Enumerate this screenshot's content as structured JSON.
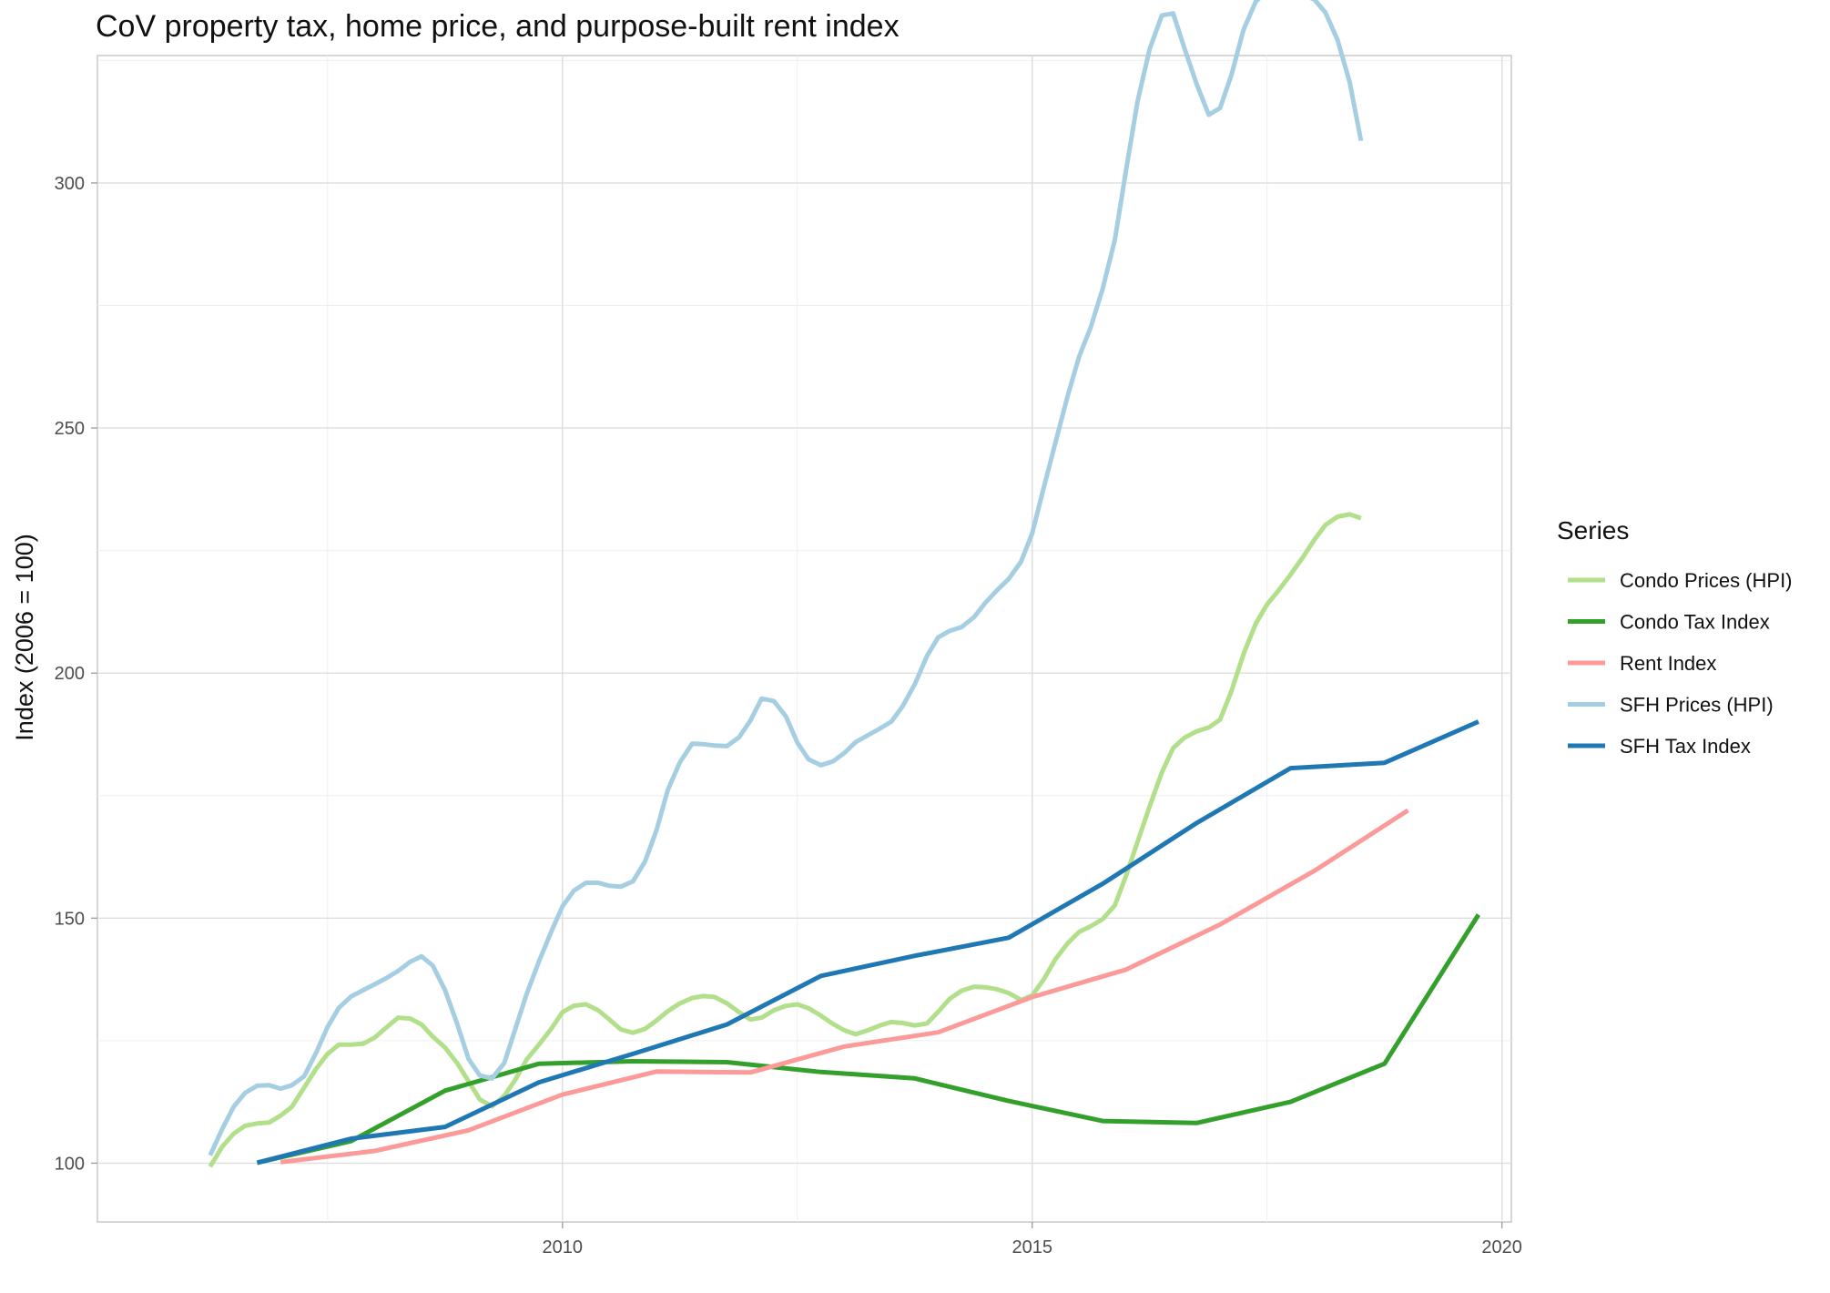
{
  "chart_data": {
    "type": "line",
    "title": "CoV property tax, home price, and purpose-built rent index",
    "xlabel": "",
    "ylabel": "Index (2006 = 100)",
    "xlim": [
      2005.05,
      2020.1
    ],
    "ylim": [
      88,
      326
    ],
    "x_ticks": [
      2010,
      2015,
      2020
    ],
    "y_ticks": [
      100,
      150,
      200,
      250,
      300
    ],
    "grid": true,
    "legend": {
      "title": "Series",
      "position": "right"
    },
    "series": [
      {
        "name": "Condo Prices (HPI)",
        "color": "#b2df8a",
        "points": [
          [
            2006.25,
            99.3
          ],
          [
            2006.38,
            103.4
          ],
          [
            2006.5,
            106
          ],
          [
            2006.62,
            107.6
          ],
          [
            2006.75,
            108.1
          ],
          [
            2006.88,
            108.3
          ],
          [
            2007.0,
            109.7
          ],
          [
            2007.12,
            111.5
          ],
          [
            2007.25,
            115.4
          ],
          [
            2007.38,
            119.3
          ],
          [
            2007.5,
            122.3
          ],
          [
            2007.62,
            124.2
          ],
          [
            2007.75,
            124.2
          ],
          [
            2007.88,
            124.4
          ],
          [
            2008.0,
            125.6
          ],
          [
            2008.12,
            127.6
          ],
          [
            2008.25,
            129.7
          ],
          [
            2008.38,
            129.5
          ],
          [
            2008.5,
            128.3
          ],
          [
            2008.62,
            125.8
          ],
          [
            2008.75,
            123.6
          ],
          [
            2008.88,
            120.4
          ],
          [
            2009.0,
            116.7
          ],
          [
            2009.12,
            113
          ],
          [
            2009.25,
            111.6
          ],
          [
            2009.38,
            113.7
          ],
          [
            2009.5,
            117.1
          ],
          [
            2009.62,
            121.2
          ],
          [
            2009.75,
            124.2
          ],
          [
            2009.88,
            127.4
          ],
          [
            2010.0,
            130.8
          ],
          [
            2010.12,
            132.1
          ],
          [
            2010.25,
            132.4
          ],
          [
            2010.38,
            131.2
          ],
          [
            2010.5,
            129.3
          ],
          [
            2010.62,
            127.3
          ],
          [
            2010.75,
            126.6
          ],
          [
            2010.88,
            127.4
          ],
          [
            2011.0,
            129.1
          ],
          [
            2011.12,
            131
          ],
          [
            2011.25,
            132.6
          ],
          [
            2011.38,
            133.7
          ],
          [
            2011.5,
            134.1
          ],
          [
            2011.62,
            133.9
          ],
          [
            2011.75,
            132.6
          ],
          [
            2011.88,
            130.8
          ],
          [
            2012.0,
            129.3
          ],
          [
            2012.12,
            129.7
          ],
          [
            2012.25,
            131.2
          ],
          [
            2012.38,
            132.1
          ],
          [
            2012.5,
            132.4
          ],
          [
            2012.62,
            131.6
          ],
          [
            2012.75,
            130.1
          ],
          [
            2012.88,
            128.4
          ],
          [
            2013.0,
            127.1
          ],
          [
            2013.12,
            126.3
          ],
          [
            2013.25,
            127.1
          ],
          [
            2013.38,
            128.1
          ],
          [
            2013.5,
            128.8
          ],
          [
            2013.62,
            128.6
          ],
          [
            2013.75,
            128.1
          ],
          [
            2013.88,
            128.5
          ],
          [
            2014.0,
            130.9
          ],
          [
            2014.12,
            133.5
          ],
          [
            2014.25,
            135.2
          ],
          [
            2014.38,
            136
          ],
          [
            2014.5,
            135.9
          ],
          [
            2014.62,
            135.5
          ],
          [
            2014.75,
            134.7
          ],
          [
            2014.88,
            133.3
          ],
          [
            2015.0,
            134.2
          ],
          [
            2015.12,
            137.4
          ],
          [
            2015.25,
            141.7
          ],
          [
            2015.38,
            144.9
          ],
          [
            2015.5,
            147.2
          ],
          [
            2015.62,
            148.3
          ],
          [
            2015.75,
            149.8
          ],
          [
            2015.88,
            152.6
          ],
          [
            2016.0,
            158.7
          ],
          [
            2016.12,
            165.5
          ],
          [
            2016.25,
            172.8
          ],
          [
            2016.38,
            179.7
          ],
          [
            2016.5,
            184.7
          ],
          [
            2016.62,
            186.8
          ],
          [
            2016.75,
            188.1
          ],
          [
            2016.88,
            188.9
          ],
          [
            2017.0,
            190.5
          ],
          [
            2017.12,
            196.3
          ],
          [
            2017.25,
            203.9
          ],
          [
            2017.38,
            210.1
          ],
          [
            2017.5,
            214
          ],
          [
            2017.62,
            216.8
          ],
          [
            2017.75,
            220.1
          ],
          [
            2017.88,
            223.6
          ],
          [
            2018.0,
            227.1
          ],
          [
            2018.12,
            230.2
          ],
          [
            2018.25,
            231.9
          ],
          [
            2018.38,
            232.4
          ],
          [
            2018.5,
            231.6
          ]
        ]
      },
      {
        "name": "Condo Tax Index",
        "color": "#33a02c",
        "points": [
          [
            2006.75,
            100.1
          ],
          [
            2007.75,
            104.5
          ],
          [
            2008.75,
            114.8
          ],
          [
            2009.75,
            120.3
          ],
          [
            2010.75,
            120.8
          ],
          [
            2011.75,
            120.6
          ],
          [
            2012.75,
            118.6
          ],
          [
            2013.75,
            117.3
          ],
          [
            2014.75,
            112.7
          ],
          [
            2015.75,
            108.6
          ],
          [
            2016.75,
            108.2
          ],
          [
            2017.75,
            112.5
          ],
          [
            2018.75,
            120.3
          ],
          [
            2019.75,
            150.7
          ]
        ]
      },
      {
        "name": "Rent Index",
        "color": "#fb9a99",
        "points": [
          [
            2007.0,
            100.2
          ],
          [
            2008.0,
            102.5
          ],
          [
            2009.0,
            106.7
          ],
          [
            2010.0,
            114
          ],
          [
            2011.0,
            118.7
          ],
          [
            2012.0,
            118.5
          ],
          [
            2013.0,
            123.8
          ],
          [
            2014.0,
            126.7
          ],
          [
            2015.0,
            133.9
          ],
          [
            2016.0,
            139.5
          ],
          [
            2017.0,
            148.7
          ],
          [
            2018.0,
            159.6
          ],
          [
            2019.0,
            172
          ]
        ]
      },
      {
        "name": "SFH Prices (HPI)",
        "color": "#a6cee3",
        "points": [
          [
            2006.25,
            101.6
          ],
          [
            2006.38,
            107
          ],
          [
            2006.5,
            111.5
          ],
          [
            2006.62,
            114.3
          ],
          [
            2006.75,
            115.8
          ],
          [
            2006.88,
            115.9
          ],
          [
            2007.0,
            115.2
          ],
          [
            2007.12,
            115.9
          ],
          [
            2007.25,
            117.7
          ],
          [
            2007.38,
            122.6
          ],
          [
            2007.5,
            127.8
          ],
          [
            2007.62,
            131.7
          ],
          [
            2007.75,
            134
          ],
          [
            2007.88,
            135.3
          ],
          [
            2008.0,
            136.5
          ],
          [
            2008.12,
            137.7
          ],
          [
            2008.25,
            139.2
          ],
          [
            2008.38,
            141.1
          ],
          [
            2008.5,
            142.2
          ],
          [
            2008.62,
            140.3
          ],
          [
            2008.75,
            135.3
          ],
          [
            2008.88,
            128.4
          ],
          [
            2009.0,
            121.3
          ],
          [
            2009.12,
            117.9
          ],
          [
            2009.25,
            117.3
          ],
          [
            2009.38,
            120.4
          ],
          [
            2009.5,
            127.5
          ],
          [
            2009.62,
            134.6
          ],
          [
            2009.75,
            141.2
          ],
          [
            2009.88,
            147.2
          ],
          [
            2010.0,
            152.4
          ],
          [
            2010.12,
            155.6
          ],
          [
            2010.25,
            157.2
          ],
          [
            2010.38,
            157.2
          ],
          [
            2010.5,
            156.6
          ],
          [
            2010.62,
            156.4
          ],
          [
            2010.75,
            157.5
          ],
          [
            2010.88,
            161.6
          ],
          [
            2011.0,
            167.9
          ],
          [
            2011.12,
            176.1
          ],
          [
            2011.25,
            181.8
          ],
          [
            2011.38,
            185.6
          ],
          [
            2011.5,
            185.5
          ],
          [
            2011.62,
            185.2
          ],
          [
            2011.75,
            185.1
          ],
          [
            2011.88,
            186.9
          ],
          [
            2012.0,
            190.3
          ],
          [
            2012.12,
            194.8
          ],
          [
            2012.25,
            194.3
          ],
          [
            2012.38,
            191.1
          ],
          [
            2012.5,
            185.8
          ],
          [
            2012.62,
            182.4
          ],
          [
            2012.75,
            181.2
          ],
          [
            2012.88,
            182
          ],
          [
            2013.0,
            183.7
          ],
          [
            2013.12,
            185.9
          ],
          [
            2013.25,
            187.3
          ],
          [
            2013.38,
            188.7
          ],
          [
            2013.5,
            190.1
          ],
          [
            2013.62,
            193.2
          ],
          [
            2013.75,
            197.7
          ],
          [
            2013.88,
            203.5
          ],
          [
            2014.0,
            207.3
          ],
          [
            2014.12,
            208.6
          ],
          [
            2014.25,
            209.4
          ],
          [
            2014.38,
            211.4
          ],
          [
            2014.5,
            214.3
          ],
          [
            2014.62,
            216.8
          ],
          [
            2014.75,
            219.2
          ],
          [
            2014.88,
            222.7
          ],
          [
            2015.0,
            228.5
          ],
          [
            2015.12,
            237.6
          ],
          [
            2015.25,
            247.2
          ],
          [
            2015.38,
            256.7
          ],
          [
            2015.5,
            264.6
          ],
          [
            2015.62,
            270.4
          ],
          [
            2015.75,
            278.4
          ],
          [
            2015.88,
            288.4
          ],
          [
            2016.0,
            302.7
          ],
          [
            2016.12,
            316.5
          ],
          [
            2016.25,
            327.3
          ],
          [
            2016.38,
            334.2
          ],
          [
            2016.5,
            334.6
          ],
          [
            2016.62,
            327.5
          ],
          [
            2016.75,
            320.2
          ],
          [
            2016.88,
            313.9
          ],
          [
            2017.0,
            315.3
          ],
          [
            2017.12,
            322
          ],
          [
            2017.25,
            331.3
          ],
          [
            2017.38,
            337
          ],
          [
            2017.5,
            339.2
          ],
          [
            2017.62,
            338.2
          ],
          [
            2017.75,
            338.2
          ],
          [
            2017.88,
            338.3
          ],
          [
            2018.0,
            337.5
          ],
          [
            2018.12,
            334.8
          ],
          [
            2018.25,
            329.2
          ],
          [
            2018.38,
            320.5
          ],
          [
            2018.5,
            308.6
          ]
        ]
      },
      {
        "name": "SFH Tax Index",
        "color": "#1f78b4",
        "points": [
          [
            2006.75,
            100.1
          ],
          [
            2007.75,
            105
          ],
          [
            2008.75,
            107.4
          ],
          [
            2009.75,
            116.5
          ],
          [
            2010.75,
            122.3
          ],
          [
            2011.75,
            128.3
          ],
          [
            2012.75,
            138.2
          ],
          [
            2013.75,
            142.3
          ],
          [
            2014.75,
            146
          ],
          [
            2015.75,
            157
          ],
          [
            2016.75,
            169.4
          ],
          [
            2017.75,
            180.6
          ],
          [
            2018.75,
            181.7
          ],
          [
            2019.75,
            190.1
          ]
        ]
      }
    ]
  }
}
